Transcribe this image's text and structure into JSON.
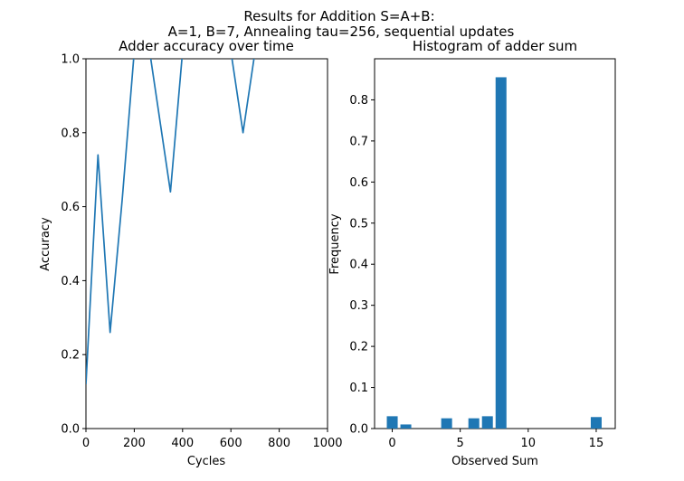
{
  "figure": {
    "suptitle_line1": "Results for Addition S=A+B:",
    "suptitle_line2": "A=1, B=7, Annealing tau=256, sequential updates",
    "line_color": "#1f77b4",
    "bar_color": "#1f77b4"
  },
  "chart_data": [
    {
      "type": "line",
      "title": "Adder accuracy over time",
      "xlabel": "Cycles",
      "ylabel": "Accuracy",
      "xlim": [
        0,
        1000
      ],
      "ylim": [
        0,
        1.0
      ],
      "xticks": [
        0,
        200,
        400,
        600,
        800,
        1000
      ],
      "yticks": [
        0.0,
        0.2,
        0.4,
        0.6,
        0.8,
        1.0
      ],
      "grid": false,
      "series": [
        {
          "x": [
            0,
            50,
            100,
            150,
            200,
            250,
            300,
            350,
            400,
            450,
            500,
            550,
            600,
            650,
            700,
            750,
            800,
            850,
            900,
            950
          ],
          "y": [
            0.12,
            0.74,
            0.26,
            0.62,
            1.02,
            1.08,
            0.86,
            0.64,
            1.02,
            1.1,
            1.1,
            1.1,
            1.02,
            0.8,
            1.02,
            1.1,
            1.1,
            1.1,
            1.1,
            1.1
          ]
        }
      ]
    },
    {
      "type": "bar",
      "title": "Histogram of adder sum",
      "xlabel": "Observed Sum",
      "ylabel": "Frequency",
      "xlim": [
        -1.3,
        16.4
      ],
      "ylim": [
        0,
        0.9
      ],
      "xticks": [
        0,
        5,
        10,
        15
      ],
      "yticks": [
        0.0,
        0.1,
        0.2,
        0.3,
        0.4,
        0.5,
        0.6,
        0.7,
        0.8
      ],
      "grid": false,
      "x": [
        0,
        1,
        4,
        6,
        7,
        8,
        15
      ],
      "values": [
        0.03,
        0.01,
        0.025,
        0.025,
        0.03,
        0.855,
        0.028
      ]
    }
  ]
}
